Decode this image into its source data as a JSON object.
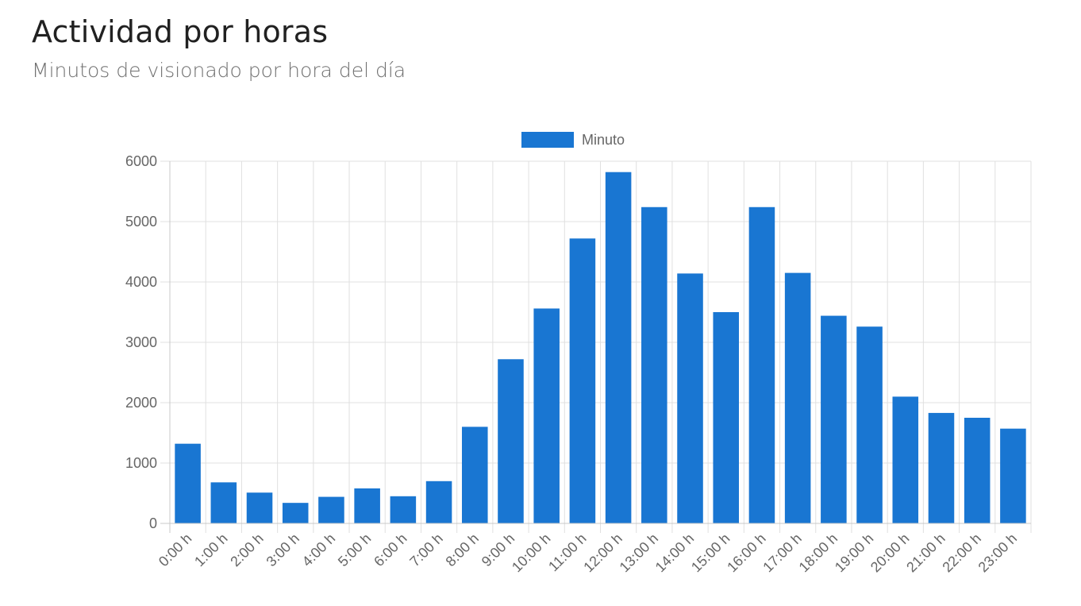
{
  "header": {
    "title": "Actividad por horas",
    "subtitle": "Minutos de visionado por hora del día"
  },
  "colors": {
    "bar": "#1976d2",
    "grid": "#e0e0e0",
    "axis_text": "#666666"
  },
  "chart_data": {
    "type": "bar",
    "categories": [
      "0:00 h",
      "1:00 h",
      "2:00 h",
      "3:00 h",
      "4:00 h",
      "5:00 h",
      "6:00 h",
      "7:00 h",
      "8:00 h",
      "9:00 h",
      "10:00 h",
      "11:00 h",
      "12:00 h",
      "13:00 h",
      "14:00 h",
      "15:00 h",
      "16:00 h",
      "17:00 h",
      "18:00 h",
      "19:00 h",
      "20:00 h",
      "21:00 h",
      "22:00 h",
      "23:00 h"
    ],
    "series": [
      {
        "name": "Minuto",
        "values": [
          1320,
          680,
          510,
          340,
          440,
          580,
          450,
          700,
          1600,
          2720,
          3560,
          4720,
          5820,
          5240,
          4140,
          3500,
          5240,
          4150,
          3440,
          3260,
          2100,
          1830,
          1750,
          1570
        ]
      }
    ],
    "ylim": [
      0,
      6000
    ],
    "yticks": [
      "0",
      "1000",
      "2000",
      "3000",
      "4000",
      "5000",
      "6000"
    ],
    "grid": true,
    "legend": "top-center"
  }
}
